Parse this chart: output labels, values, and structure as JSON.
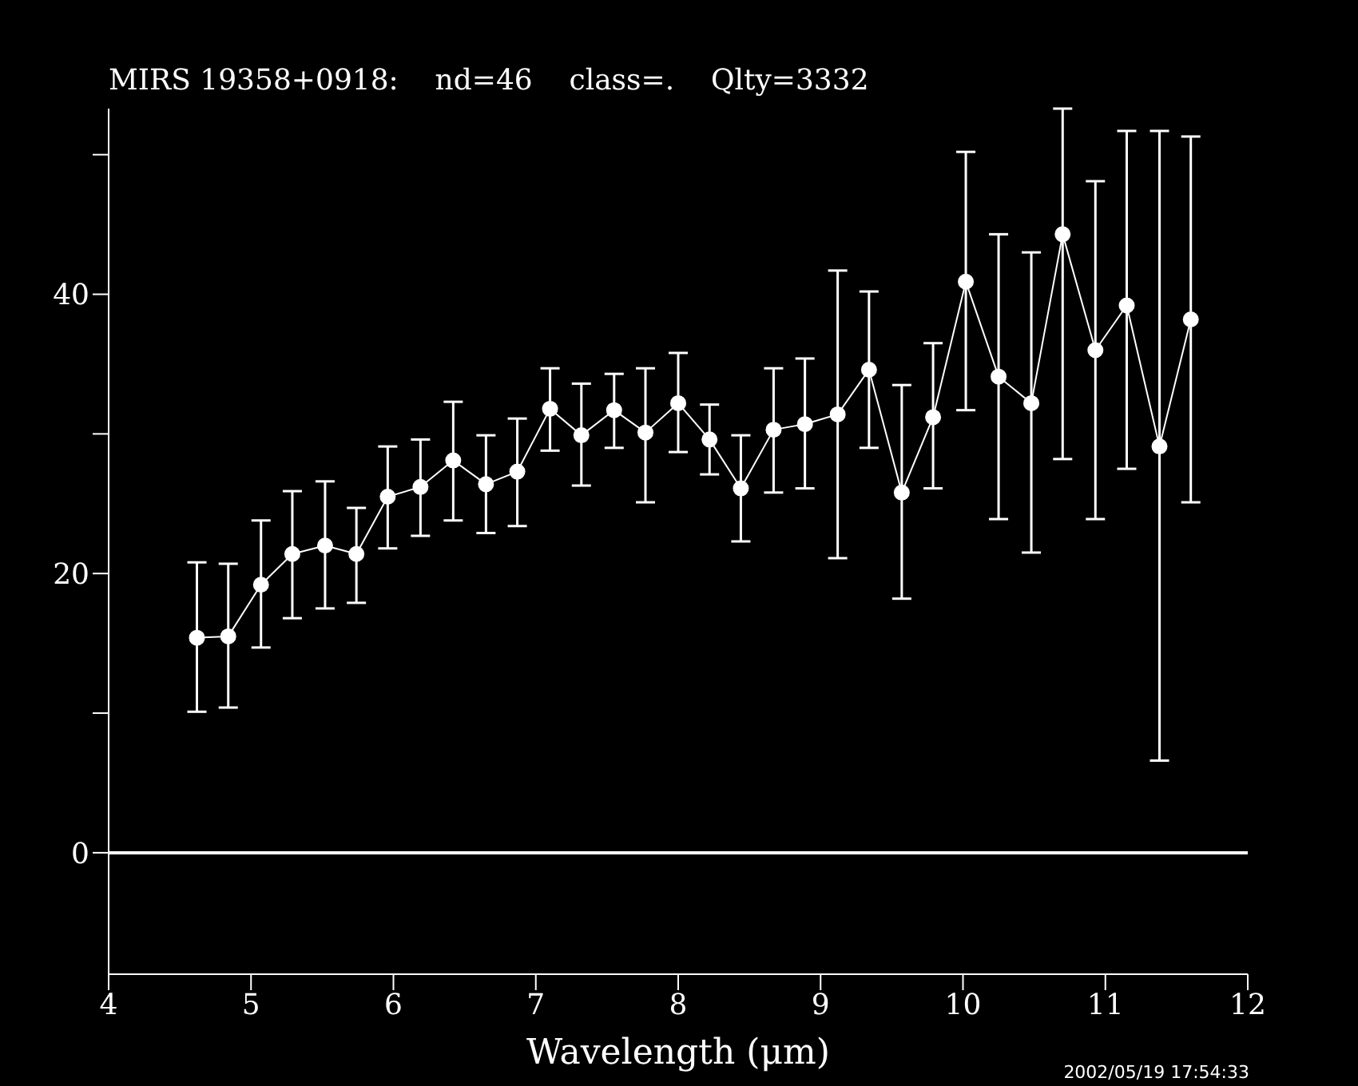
{
  "chart_data": {
    "type": "line",
    "title": "MIRS 19358+0918:    nd=46    class=.    Qlty=3332",
    "xlabel": "Wavelength (μm)",
    "annotations": [
      "2002/05/19 17:54:33"
    ],
    "x": [
      4.62,
      4.84,
      5.07,
      5.29,
      5.52,
      5.74,
      5.96,
      6.19,
      6.42,
      6.65,
      6.87,
      7.1,
      7.32,
      7.55,
      7.77,
      8.0,
      8.22,
      8.44,
      8.67,
      8.89,
      9.12,
      9.34,
      9.57,
      9.79,
      10.02,
      10.25,
      10.48,
      10.7,
      10.93,
      11.15,
      11.38,
      11.6
    ],
    "series": [
      {
        "color": "#ffffff",
        "values": [
          15.4,
          15.5,
          19.2,
          21.4,
          22.0,
          21.4,
          25.5,
          26.2,
          28.1,
          26.4,
          27.3,
          31.8,
          29.9,
          31.7,
          30.1,
          32.2,
          29.6,
          26.1,
          30.3,
          30.7,
          31.4,
          34.6,
          25.8,
          31.2,
          40.9,
          34.1,
          32.2,
          44.3,
          36.0,
          39.2,
          29.1,
          38.2
        ],
        "errors": [
          [
            10.1,
            20.8
          ],
          [
            10.4,
            20.7
          ],
          [
            14.7,
            23.8
          ],
          [
            16.8,
            25.9
          ],
          [
            17.5,
            26.6
          ],
          [
            17.9,
            24.7
          ],
          [
            21.8,
            29.1
          ],
          [
            22.7,
            29.6
          ],
          [
            23.8,
            32.3
          ],
          [
            22.9,
            29.9
          ],
          [
            23.4,
            31.1
          ],
          [
            28.8,
            34.7
          ],
          [
            26.3,
            33.6
          ],
          [
            29.0,
            34.3
          ],
          [
            25.1,
            34.7
          ],
          [
            28.7,
            35.8
          ],
          [
            27.1,
            32.1
          ],
          [
            22.3,
            29.9
          ],
          [
            25.8,
            34.7
          ],
          [
            26.1,
            35.4
          ],
          [
            21.1,
            41.7
          ],
          [
            29.0,
            40.2
          ],
          [
            18.2,
            33.5
          ],
          [
            26.1,
            36.5
          ],
          [
            31.7,
            50.2
          ],
          [
            23.9,
            44.3
          ],
          [
            21.5,
            43.0
          ],
          [
            28.2,
            53.3
          ],
          [
            23.9,
            48.1
          ],
          [
            27.5,
            51.7
          ],
          [
            6.6,
            51.7
          ],
          [
            25.1,
            51.3
          ]
        ]
      }
    ],
    "xlim": [
      4,
      12
    ],
    "xticks": [
      4,
      5,
      6,
      7,
      8,
      9,
      10,
      11,
      12
    ],
    "ylim": [
      -8.7,
      53.3
    ],
    "yticks": [
      0,
      {
        "value": 10,
        "label": null
      },
      20,
      {
        "value": 30,
        "label": null
      },
      40,
      {
        "value": 50,
        "label": null
      }
    ],
    "ref_lines": [
      {
        "axis": "y",
        "value": 0,
        "color": "#ffffff"
      }
    ],
    "marker": "circle",
    "line_style": "solid"
  }
}
